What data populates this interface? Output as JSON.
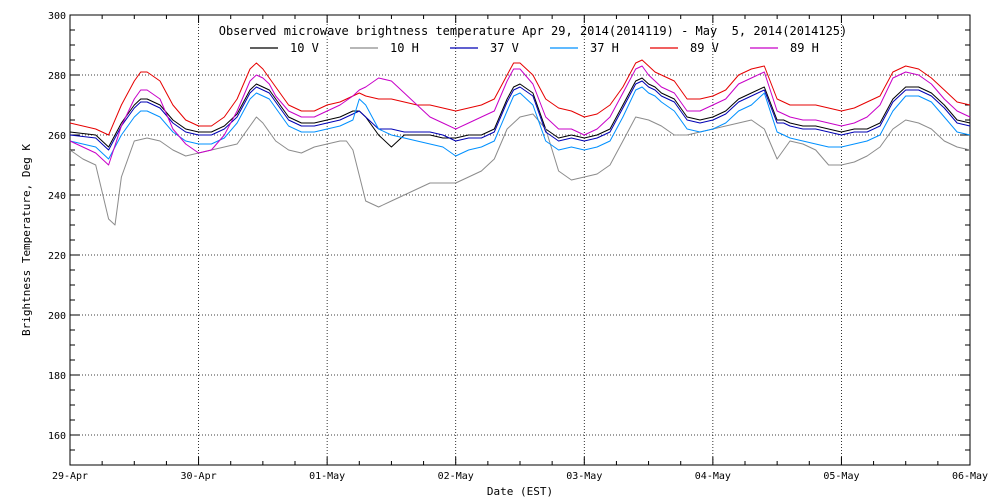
{
  "chart_data": {
    "type": "line",
    "title": "Observed microwave brightness temperature Apr 29, 2014(2014119) - May  5, 2014(2014125)",
    "xlabel": "Date (EST)",
    "ylabel": "Brightness Temperature, Deg K",
    "xlim": [
      0,
      7
    ],
    "ylim": [
      150,
      300
    ],
    "x_tick_labels": [
      "29-Apr",
      "30-Apr",
      "01-May",
      "02-May",
      "03-May",
      "04-May",
      "05-May",
      "06-May"
    ],
    "y_tick_values": [
      160,
      180,
      200,
      220,
      240,
      260,
      280,
      300
    ],
    "grid": true,
    "legend_position": "top",
    "series": [
      {
        "name": "10 V",
        "color": "#000000",
        "x": [
          0,
          0.2,
          0.3,
          0.4,
          0.5,
          0.55,
          0.6,
          0.7,
          0.8,
          0.9,
          1.0,
          1.1,
          1.2,
          1.3,
          1.4,
          1.45,
          1.5,
          1.55,
          1.6,
          1.7,
          1.8,
          1.9,
          2.0,
          2.1,
          2.2,
          2.25,
          2.3,
          2.4,
          2.5,
          2.6,
          2.7,
          2.8,
          2.9,
          3.0,
          3.1,
          3.2,
          3.3,
          3.4,
          3.45,
          3.5,
          3.6,
          3.7,
          3.8,
          3.9,
          4.0,
          4.1,
          4.2,
          4.3,
          4.4,
          4.45,
          4.5,
          4.55,
          4.6,
          4.7,
          4.8,
          4.9,
          5.0,
          5.1,
          5.2,
          5.3,
          5.4,
          5.5,
          5.55,
          5.6,
          5.7,
          5.8,
          5.9,
          6.0,
          6.1,
          6.2,
          6.3,
          6.4,
          6.5,
          6.6,
          6.7,
          6.8,
          6.9,
          7.0
        ],
        "y": [
          261,
          260,
          256,
          264,
          270,
          272,
          272,
          270,
          265,
          262,
          261,
          261,
          263,
          267,
          275,
          277,
          276,
          275,
          272,
          266,
          264,
          264,
          265,
          266,
          268,
          268,
          266,
          260,
          256,
          260,
          260,
          260,
          259,
          259,
          260,
          260,
          262,
          272,
          276,
          277,
          274,
          262,
          259,
          260,
          259,
          260,
          262,
          270,
          278,
          279,
          277,
          276,
          274,
          272,
          266,
          265,
          266,
          268,
          272,
          274,
          276,
          265,
          265,
          264,
          263,
          263,
          262,
          261,
          262,
          262,
          264,
          272,
          276,
          276,
          274,
          270,
          265,
          264
        ]
      },
      {
        "name": "10 H",
        "color": "#8c8c8c",
        "x": [
          0,
          0.1,
          0.2,
          0.3,
          0.35,
          0.4,
          0.5,
          0.6,
          0.7,
          0.8,
          0.9,
          1.0,
          1.1,
          1.2,
          1.3,
          1.4,
          1.45,
          1.5,
          1.6,
          1.7,
          1.8,
          1.9,
          2.0,
          2.1,
          2.15,
          2.2,
          2.3,
          2.4,
          2.5,
          2.6,
          2.7,
          2.8,
          2.9,
          3.0,
          3.1,
          3.2,
          3.3,
          3.4,
          3.5,
          3.6,
          3.7,
          3.8,
          3.9,
          4.0,
          4.1,
          4.2,
          4.3,
          4.4,
          4.5,
          4.6,
          4.7,
          4.8,
          4.9,
          5.0,
          5.1,
          5.2,
          5.3,
          5.4,
          5.5,
          5.6,
          5.7,
          5.8,
          5.9,
          6.0,
          6.1,
          6.2,
          6.3,
          6.4,
          6.5,
          6.6,
          6.7,
          6.8,
          6.9,
          7.0
        ],
        "y": [
          255,
          252,
          250,
          232,
          230,
          246,
          258,
          259,
          258,
          255,
          253,
          254,
          255,
          256,
          257,
          263,
          266,
          264,
          258,
          255,
          254,
          256,
          257,
          258,
          258,
          255,
          238,
          236,
          238,
          240,
          242,
          244,
          244,
          244,
          246,
          248,
          252,
          262,
          266,
          267,
          262,
          248,
          245,
          246,
          247,
          250,
          258,
          266,
          265,
          263,
          260,
          260,
          261,
          262,
          263,
          264,
          265,
          262,
          252,
          258,
          257,
          255,
          250,
          250,
          251,
          253,
          256,
          262,
          265,
          264,
          262,
          258,
          256,
          255
        ]
      },
      {
        "name": "37 V",
        "color": "#0000b4",
        "x": [
          0,
          0.2,
          0.3,
          0.4,
          0.5,
          0.55,
          0.6,
          0.7,
          0.8,
          0.9,
          1.0,
          1.1,
          1.2,
          1.3,
          1.4,
          1.45,
          1.5,
          1.55,
          1.6,
          1.7,
          1.8,
          1.9,
          2.0,
          2.1,
          2.2,
          2.25,
          2.3,
          2.4,
          2.5,
          2.6,
          2.7,
          2.8,
          2.9,
          3.0,
          3.1,
          3.2,
          3.3,
          3.4,
          3.45,
          3.5,
          3.6,
          3.7,
          3.8,
          3.9,
          4.0,
          4.1,
          4.2,
          4.3,
          4.4,
          4.45,
          4.5,
          4.55,
          4.6,
          4.7,
          4.8,
          4.9,
          5.0,
          5.1,
          5.2,
          5.3,
          5.4,
          5.5,
          5.55,
          5.6,
          5.7,
          5.8,
          5.9,
          6.0,
          6.1,
          6.2,
          6.3,
          6.4,
          6.5,
          6.6,
          6.7,
          6.8,
          6.9,
          7.0
        ],
        "y": [
          260,
          259,
          255,
          263,
          269,
          271,
          271,
          269,
          264,
          261,
          260,
          260,
          262,
          266,
          274,
          276,
          275,
          274,
          271,
          265,
          263,
          263,
          264,
          265,
          267,
          268,
          266,
          262,
          262,
          261,
          261,
          261,
          260,
          258,
          259,
          259,
          261,
          271,
          275,
          276,
          273,
          261,
          258,
          259,
          258,
          259,
          261,
          269,
          277,
          278,
          276,
          275,
          273,
          271,
          265,
          264,
          265,
          267,
          271,
          273,
          275,
          264,
          264,
          263,
          262,
          262,
          261,
          260,
          261,
          261,
          263,
          271,
          275,
          275,
          273,
          269,
          264,
          263
        ]
      },
      {
        "name": "37 H",
        "color": "#0090ff",
        "x": [
          0,
          0.2,
          0.3,
          0.4,
          0.5,
          0.55,
          0.6,
          0.7,
          0.8,
          0.9,
          1.0,
          1.1,
          1.2,
          1.3,
          1.4,
          1.45,
          1.5,
          1.55,
          1.6,
          1.7,
          1.8,
          1.9,
          2.0,
          2.1,
          2.2,
          2.25,
          2.3,
          2.4,
          2.5,
          2.6,
          2.7,
          2.8,
          2.9,
          3.0,
          3.1,
          3.2,
          3.3,
          3.4,
          3.45,
          3.5,
          3.6,
          3.7,
          3.8,
          3.9,
          4.0,
          4.1,
          4.2,
          4.3,
          4.4,
          4.45,
          4.5,
          4.55,
          4.6,
          4.7,
          4.8,
          4.9,
          5.0,
          5.1,
          5.2,
          5.3,
          5.4,
          5.5,
          5.55,
          5.6,
          5.7,
          5.8,
          5.9,
          6.0,
          6.1,
          6.2,
          6.3,
          6.4,
          6.5,
          6.6,
          6.7,
          6.8,
          6.9,
          7.0
        ],
        "y": [
          258,
          256,
          252,
          260,
          266,
          268,
          268,
          266,
          261,
          258,
          257,
          257,
          259,
          264,
          272,
          274,
          273,
          272,
          269,
          263,
          261,
          261,
          262,
          263,
          265,
          272,
          270,
          262,
          260,
          259,
          258,
          257,
          256,
          253,
          255,
          256,
          258,
          268,
          273,
          274,
          270,
          258,
          255,
          256,
          255,
          256,
          258,
          266,
          275,
          276,
          274,
          273,
          271,
          268,
          262,
          261,
          262,
          264,
          268,
          270,
          274,
          261,
          260,
          259,
          258,
          257,
          256,
          256,
          257,
          258,
          260,
          268,
          273,
          273,
          271,
          266,
          261,
          260
        ]
      },
      {
        "name": "89 V",
        "color": "#e60000",
        "x": [
          0,
          0.2,
          0.3,
          0.4,
          0.5,
          0.55,
          0.6,
          0.7,
          0.8,
          0.9,
          1.0,
          1.1,
          1.2,
          1.3,
          1.4,
          1.45,
          1.5,
          1.55,
          1.6,
          1.7,
          1.8,
          1.9,
          2.0,
          2.1,
          2.2,
          2.25,
          2.3,
          2.4,
          2.5,
          2.6,
          2.7,
          2.8,
          2.9,
          3.0,
          3.1,
          3.2,
          3.3,
          3.4,
          3.45,
          3.5,
          3.6,
          3.7,
          3.8,
          3.9,
          4.0,
          4.1,
          4.2,
          4.3,
          4.4,
          4.45,
          4.5,
          4.55,
          4.6,
          4.7,
          4.8,
          4.9,
          5.0,
          5.1,
          5.2,
          5.3,
          5.4,
          5.5,
          5.55,
          5.6,
          5.7,
          5.8,
          5.9,
          6.0,
          6.1,
          6.2,
          6.3,
          6.4,
          6.5,
          6.6,
          6.7,
          6.8,
          6.9,
          7.0
        ],
        "y": [
          264,
          262,
          260,
          270,
          278,
          281,
          281,
          278,
          270,
          265,
          263,
          263,
          266,
          272,
          282,
          284,
          282,
          279,
          276,
          270,
          268,
          268,
          270,
          271,
          273,
          274,
          273,
          272,
          272,
          271,
          270,
          270,
          269,
          268,
          269,
          270,
          272,
          280,
          284,
          284,
          280,
          272,
          269,
          268,
          266,
          267,
          270,
          276,
          284,
          285,
          283,
          281,
          280,
          278,
          272,
          272,
          273,
          275,
          280,
          282,
          283,
          272,
          271,
          270,
          270,
          270,
          269,
          268,
          269,
          271,
          273,
          281,
          283,
          282,
          279,
          275,
          271,
          270
        ]
      },
      {
        "name": "89 H",
        "color": "#c800c8",
        "x": [
          0,
          0.2,
          0.3,
          0.4,
          0.5,
          0.55,
          0.6,
          0.7,
          0.8,
          0.9,
          1.0,
          1.1,
          1.2,
          1.3,
          1.4,
          1.45,
          1.5,
          1.55,
          1.6,
          1.7,
          1.8,
          1.9,
          2.0,
          2.1,
          2.2,
          2.25,
          2.3,
          2.4,
          2.5,
          2.6,
          2.7,
          2.8,
          2.9,
          3.0,
          3.1,
          3.2,
          3.3,
          3.4,
          3.45,
          3.5,
          3.6,
          3.7,
          3.8,
          3.9,
          4.0,
          4.1,
          4.2,
          4.3,
          4.4,
          4.45,
          4.5,
          4.55,
          4.6,
          4.7,
          4.8,
          4.9,
          5.0,
          5.1,
          5.2,
          5.3,
          5.4,
          5.5,
          5.55,
          5.6,
          5.7,
          5.8,
          5.9,
          6.0,
          6.1,
          6.2,
          6.3,
          6.4,
          6.5,
          6.6,
          6.7,
          6.8,
          6.9,
          7.0
        ],
        "y": [
          258,
          254,
          250,
          263,
          272,
          275,
          275,
          272,
          262,
          257,
          254,
          255,
          260,
          268,
          278,
          280,
          279,
          277,
          273,
          268,
          266,
          266,
          268,
          270,
          273,
          275,
          276,
          279,
          278,
          274,
          270,
          266,
          264,
          262,
          264,
          266,
          268,
          278,
          282,
          282,
          277,
          266,
          262,
          262,
          260,
          262,
          266,
          274,
          282,
          283,
          280,
          278,
          276,
          274,
          268,
          268,
          270,
          272,
          277,
          279,
          281,
          268,
          267,
          266,
          265,
          265,
          264,
          263,
          264,
          266,
          270,
          279,
          281,
          280,
          277,
          272,
          268,
          266
        ]
      }
    ]
  }
}
